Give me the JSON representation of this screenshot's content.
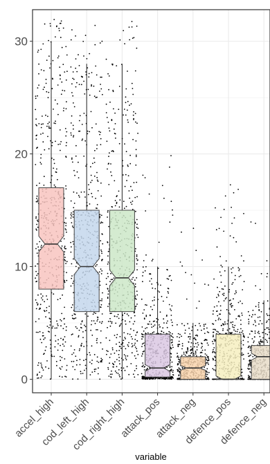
{
  "chart_data": {
    "type": "boxplot",
    "title": "",
    "xlabel": "variable",
    "ylabel": "",
    "ylim": [
      -1.2,
      32.8
    ],
    "y_ticks": [
      0,
      10,
      20,
      30
    ],
    "grid": true,
    "notched": true,
    "jittered_points": true,
    "colors": {
      "accel_high": "#f8c4c0",
      "cod_left_high": "#c4d7ec",
      "cod_right_high": "#cde7c8",
      "attack_pos": "#dbc8e3",
      "attack_neg": "#f8d3ad",
      "defence_pos": "#f6efbf",
      "defence_neg": "#e8dcc8"
    },
    "categories": [
      "accel_high",
      "cod_left_high",
      "cod_right_high",
      "attack_pos",
      "attack_neg",
      "defence_pos",
      "defence_neg"
    ],
    "boxes": [
      {
        "category": "accel_high",
        "min": 0,
        "q1": 8,
        "median": 12,
        "q3": 17,
        "max": 30,
        "notch": [
          11.3,
          12.7
        ]
      },
      {
        "category": "cod_left_high",
        "min": 0,
        "q1": 6,
        "median": 10,
        "q3": 15,
        "max": 28,
        "notch": [
          9.3,
          10.7
        ]
      },
      {
        "category": "cod_right_high",
        "min": 0,
        "q1": 6,
        "median": 9,
        "q3": 15,
        "max": 28,
        "notch": [
          8.3,
          9.7
        ]
      },
      {
        "category": "attack_pos",
        "min": 0,
        "q1": 0.2,
        "median": 1,
        "q3": 4,
        "max": 10,
        "notch": [
          0.7,
          1.3
        ]
      },
      {
        "category": "attack_neg",
        "min": 0,
        "q1": 0,
        "median": 1,
        "q3": 2,
        "max": 5,
        "notch": [
          0.8,
          1.2
        ]
      },
      {
        "category": "defence_pos",
        "min": 0,
        "q1": 0,
        "median": 0,
        "q3": 4,
        "max": 10,
        "notch": [
          0,
          0.3
        ]
      },
      {
        "category": "defence_neg",
        "min": 0,
        "q1": 0,
        "median": 2,
        "q3": 3,
        "max": 7,
        "notch": [
          1.7,
          2.3
        ]
      }
    ],
    "points": [
      {
        "category": "accel_high",
        "approx_max": 32,
        "density": "dense across 0-32"
      },
      {
        "category": "cod_left_high",
        "approx_max": 32,
        "density": "dense across 0-32"
      },
      {
        "category": "cod_right_high",
        "approx_max": 32,
        "density": "dense across 0-32"
      },
      {
        "category": "attack_pos",
        "approx_max": 20,
        "density": "concentrated below 5, sparse to 20"
      },
      {
        "category": "attack_neg",
        "approx_max": 14,
        "density": "concentrated below 3, sparse to 14"
      },
      {
        "category": "defence_pos",
        "approx_max": 18,
        "density": "concentrated below 5, sparse to 18"
      },
      {
        "category": "defence_neg",
        "approx_max": 15,
        "density": "concentrated below 4, sparse to 15"
      }
    ]
  }
}
